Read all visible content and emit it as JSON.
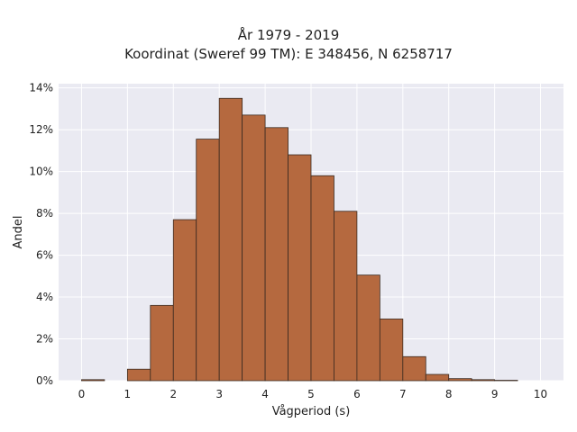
{
  "chart_data": {
    "type": "bar",
    "title": "År 1979 - 2019",
    "subtitle": "Koordinat (Sweref 99 TM): E 348456, N 6258717",
    "xlabel": "Vågperiod (s)",
    "ylabel": "Andel",
    "bin_width": 0.5,
    "bin_starts": [
      0,
      0.5,
      1,
      1.5,
      2,
      2.5,
      3,
      3.5,
      4,
      4.5,
      5,
      5.5,
      6,
      6.5,
      7,
      7.5,
      8,
      8.5,
      9,
      9.5
    ],
    "values": [
      0.05,
      0,
      0.55,
      3.6,
      7.7,
      11.55,
      13.5,
      12.7,
      12.1,
      10.8,
      9.8,
      8.1,
      5.05,
      2.95,
      1.15,
      0.3,
      0.1,
      0.05,
      0.02,
      0
    ],
    "xlim": [
      -0.5,
      10.5
    ],
    "ylim": [
      0,
      14.2
    ],
    "x_ticks": [
      "0",
      "1",
      "2",
      "3",
      "4",
      "5",
      "6",
      "7",
      "8",
      "9",
      "10"
    ],
    "y_ticks": [
      "0%",
      "2%",
      "4%",
      "6%",
      "8%",
      "10%",
      "12%",
      "14%"
    ],
    "grid": true,
    "colors": {
      "bar": "#b5693f",
      "edge": "#3a2a20",
      "background": "#eaeaf2",
      "grid": "#ffffff"
    }
  }
}
